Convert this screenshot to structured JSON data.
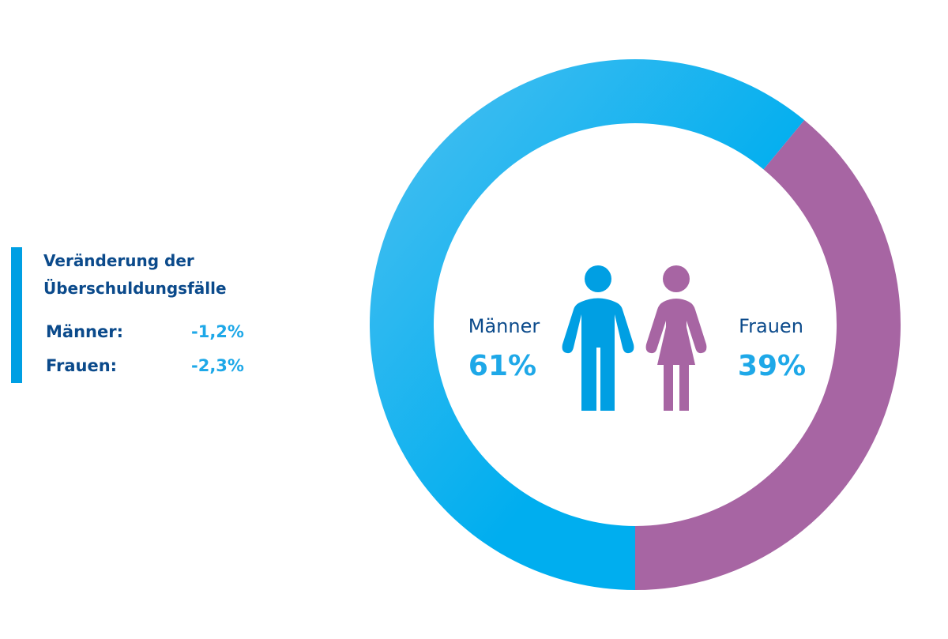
{
  "legend": {
    "title_line1": "Veränderung der",
    "title_line2": "Überschuldungsfälle",
    "rows": [
      {
        "label": "Männer:",
        "value": "-1,2%"
      },
      {
        "label": "Frauen:",
        "value": "-2,3%"
      }
    ]
  },
  "colors": {
    "men": "#00aeef",
    "men_light": "#4dc0f0",
    "women": "#a765a3",
    "men_icon": "#009fe3",
    "text_dark": "#0b4a8b",
    "text_accent": "#1ea8e8"
  },
  "chart_data": {
    "type": "pie",
    "variant": "donut",
    "title": "",
    "series": [
      {
        "name": "Männer",
        "label": "Männer",
        "value": 61,
        "display": "61%",
        "color": "#00aeef"
      },
      {
        "name": "Frauen",
        "label": "Frauen",
        "value": 39,
        "display": "39%",
        "color": "#a765a3"
      }
    ],
    "unit": "%",
    "icons": [
      "man-icon",
      "woman-icon"
    ],
    "legend": "none"
  }
}
